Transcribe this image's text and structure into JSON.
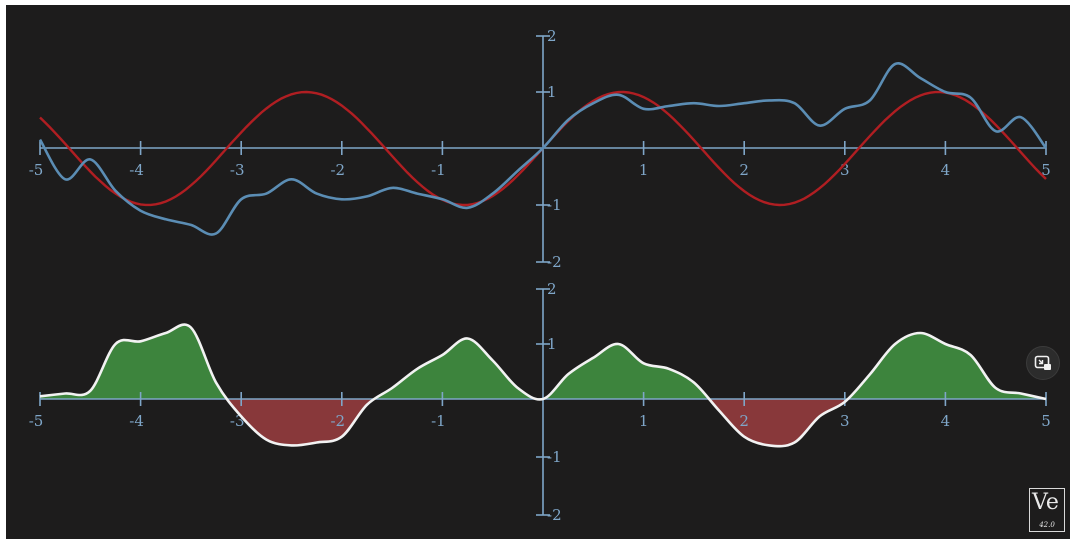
{
  "chart_data": [
    {
      "type": "line",
      "title": "",
      "xlabel": "",
      "ylabel": "",
      "xlim": [
        -5,
        5
      ],
      "ylim": [
        -2,
        2
      ],
      "x_ticks": [
        "-5",
        "-4",
        "-3",
        "-2",
        "-1",
        "1",
        "2",
        "3",
        "4",
        "5"
      ],
      "y_ticks": [
        "2",
        "1",
        "-1",
        "-2"
      ],
      "grid": false,
      "series": [
        {
          "color": "#b01e22",
          "function": "sin(2x)",
          "x": [
            -5,
            -4.5,
            -4,
            -3.5,
            -3,
            -2.5,
            -2,
            -1.5,
            -1,
            -0.5,
            0,
            0.5,
            1,
            1.5,
            2,
            2.5,
            3,
            3.5,
            4,
            4.5,
            5
          ],
          "y": [
            0.54,
            -0.41,
            -0.99,
            -0.66,
            0.28,
            0.96,
            0.76,
            -0.14,
            -0.91,
            -0.84,
            0,
            0.84,
            0.91,
            0.14,
            -0.76,
            -0.96,
            -0.28,
            0.66,
            0.99,
            0.41,
            -0.54
          ]
        },
        {
          "color": "#5b8db4",
          "x": [
            -5,
            -4.75,
            -4.5,
            -4.25,
            -4,
            -3.75,
            -3.5,
            -3.25,
            -3,
            -2.75,
            -2.5,
            -2.25,
            -2,
            -1.75,
            -1.5,
            -1.25,
            -1,
            -0.75,
            -0.5,
            -0.25,
            0,
            0.25,
            0.5,
            0.75,
            1,
            1.25,
            1.5,
            1.75,
            2,
            2.25,
            2.5,
            2.75,
            3,
            3.25,
            3.5,
            3.75,
            4,
            4.25,
            4.5,
            4.75,
            5
          ],
          "y": [
            0.15,
            -0.55,
            -0.2,
            -0.75,
            -1.1,
            -1.25,
            -1.35,
            -1.5,
            -0.9,
            -0.8,
            -0.55,
            -0.8,
            -0.9,
            -0.85,
            -0.7,
            -0.8,
            -0.9,
            -1.05,
            -0.8,
            -0.4,
            0,
            0.5,
            0.8,
            0.95,
            0.7,
            0.75,
            0.8,
            0.75,
            0.8,
            0.85,
            0.8,
            0.4,
            0.7,
            0.85,
            1.5,
            1.25,
            1.0,
            0.9,
            0.3,
            0.55,
            0
          ]
        }
      ]
    },
    {
      "type": "area",
      "title": "",
      "xlabel": "",
      "ylabel": "",
      "xlim": [
        -5,
        5
      ],
      "ylim": [
        -2,
        2
      ],
      "x_ticks": [
        "-5",
        "-4",
        "-3",
        "-2",
        "-1",
        "1",
        "2",
        "3",
        "4",
        "5"
      ],
      "y_ticks": [
        "2",
        "1",
        "-1",
        "-2"
      ],
      "grid": false,
      "positive_fill": "#3f8a3f",
      "negative_fill": "#8e3a3c",
      "series": [
        {
          "color": "#f2f2f2",
          "x": [
            -5,
            -4.75,
            -4.5,
            -4.25,
            -4,
            -3.75,
            -3.5,
            -3.25,
            -3,
            -2.75,
            -2.5,
            -2.25,
            -2,
            -1.75,
            -1.5,
            -1.25,
            -1,
            -0.75,
            -0.5,
            -0.25,
            0,
            0.25,
            0.5,
            0.75,
            1,
            1.25,
            1.5,
            1.75,
            2,
            2.25,
            2.5,
            2.75,
            3,
            3.25,
            3.5,
            3.75,
            4,
            4.25,
            4.5,
            4.75,
            5
          ],
          "y": [
            0.05,
            0.1,
            0.15,
            1.0,
            1.05,
            1.2,
            1.3,
            0.3,
            -0.3,
            -0.7,
            -0.8,
            -0.75,
            -0.65,
            -0.1,
            0.2,
            0.55,
            0.8,
            1.1,
            0.7,
            0.2,
            0,
            0.45,
            0.75,
            1.0,
            0.65,
            0.55,
            0.3,
            -0.2,
            -0.65,
            -0.8,
            -0.75,
            -0.3,
            -0.05,
            0.45,
            1.0,
            1.2,
            1.0,
            0.8,
            0.2,
            0.1,
            0
          ]
        }
      ]
    }
  ],
  "controls": {
    "pip_icon": "picture-in-picture-icon"
  },
  "logo": {
    "main": "Ve",
    "sub": "42.0",
    "icon": "watermark-logo"
  }
}
